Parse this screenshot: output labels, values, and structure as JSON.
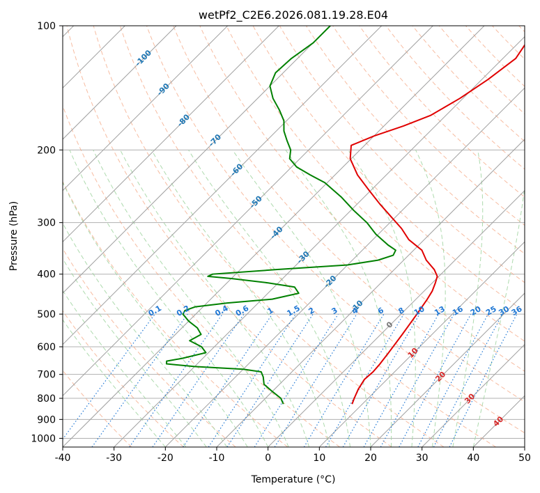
{
  "chart_data": {
    "type": "skew-t",
    "title": "wetPf2_C2E6.2026.081.19.28.E04",
    "xlabel": "Temperature (°C)",
    "ylabel": "Pressure (hPa)",
    "xlim": [
      -40,
      50
    ],
    "ylim": [
      1050,
      100
    ],
    "y_scale": "log",
    "grid": true,
    "xticks": [
      -40,
      -30,
      -20,
      -10,
      0,
      10,
      20,
      30,
      40,
      50
    ],
    "yticks": [
      100,
      200,
      300,
      400,
      500,
      600,
      700,
      800,
      900,
      1000
    ],
    "colors": {
      "temperature": "#e00000",
      "dewpoint": "#008000",
      "isotherm": "#a0a0a0",
      "dry_adiabat": "#f4a582",
      "moist_adiabat": "#9fd49f",
      "mixing_ratio": "#1f77d4",
      "isotherm_label": "#d62728",
      "neg_isotherm_label": "#1f77b4",
      "zero_label": "#777777"
    },
    "isotherm_labels": [
      {
        "t": -100,
        "p": 120
      },
      {
        "t": -90,
        "p": 143
      },
      {
        "t": -80,
        "p": 170
      },
      {
        "t": -70,
        "p": 190
      },
      {
        "t": -60,
        "p": 224
      },
      {
        "t": -50,
        "p": 268
      },
      {
        "t": -40,
        "p": 318
      },
      {
        "t": -30,
        "p": 365
      },
      {
        "t": -20,
        "p": 418
      },
      {
        "t": -10,
        "p": 480
      },
      {
        "t": 0,
        "p": 532
      },
      {
        "t": 10,
        "p": 622
      },
      {
        "t": 20,
        "p": 710
      },
      {
        "t": 30,
        "p": 803
      },
      {
        "t": 40,
        "p": 912
      }
    ],
    "mixing_ratio_labels": [
      "0.1",
      "0.2",
      "0.4",
      "0.6",
      "1",
      "1.5",
      "2",
      "3",
      "4",
      "6",
      "8",
      "10",
      "13",
      "16",
      "20",
      "25",
      "30",
      "36"
    ],
    "mixing_ratio_label_x": [
      -22,
      -16.5,
      -9,
      -5,
      0.5,
      5,
      8.5,
      13,
      17,
      22,
      26,
      29.5,
      33.5,
      37,
      40.5,
      43.5,
      46,
      48.5
    ],
    "series": [
      {
        "name": "Temperature",
        "p": [
          826,
          800,
          760,
          720,
          690,
          660,
          620,
          560,
          500,
          460,
          440,
          420,
          405,
          390,
          370,
          350,
          330,
          310,
          290,
          270,
          250,
          230,
          210,
          195,
          185,
          175,
          165,
          150,
          135,
          120,
          110,
          100
        ],
        "t": [
          8.0,
          7.3,
          6.3,
          5.6,
          5.8,
          5.6,
          5.1,
          4.2,
          3.1,
          2.2,
          1.6,
          0.6,
          -0.3,
          -2.2,
          -5.6,
          -8.4,
          -13.0,
          -16.6,
          -21.0,
          -25.7,
          -30.5,
          -35.6,
          -40.2,
          -42.6,
          -40.0,
          -36.2,
          -33.0,
          -30.6,
          -28.8,
          -27.5,
          -28.5,
          -30.0
        ]
      },
      {
        "name": "Dewpoint",
        "p": [
          826,
          800,
          770,
          740,
          710,
          690,
          680,
          670,
          660,
          650,
          640,
          620,
          600,
          580,
          560,
          540,
          520,
          500,
          490,
          480,
          470,
          460,
          445,
          430,
          420,
          410,
          405,
          400,
          390,
          380,
          370,
          360,
          350,
          340,
          320,
          300,
          280,
          260,
          240,
          230,
          220,
          210,
          200,
          190,
          180,
          170,
          160,
          150,
          140,
          130,
          120,
          110,
          100
        ],
        "t": [
          -5.4,
          -7.0,
          -10.0,
          -13.0,
          -14.6,
          -16.0,
          -20.0,
          -30.0,
          -36.0,
          -36.5,
          -34.0,
          -30.5,
          -32.5,
          -36.0,
          -35.0,
          -37.0,
          -40.0,
          -42.5,
          -42.8,
          -41.5,
          -36.0,
          -28.0,
          -24.0,
          -26.0,
          -32.0,
          -40.0,
          -45.0,
          -44.5,
          -33.0,
          -20.0,
          -15.0,
          -13.0,
          -13.5,
          -16.0,
          -20.5,
          -24.5,
          -29.5,
          -34.5,
          -40.5,
          -44.8,
          -49.0,
          -52.0,
          -53.5,
          -56.0,
          -58.5,
          -60.5,
          -63.5,
          -67.0,
          -70.0,
          -71.5,
          -71.2,
          -70.0,
          -70.0
        ]
      }
    ]
  }
}
